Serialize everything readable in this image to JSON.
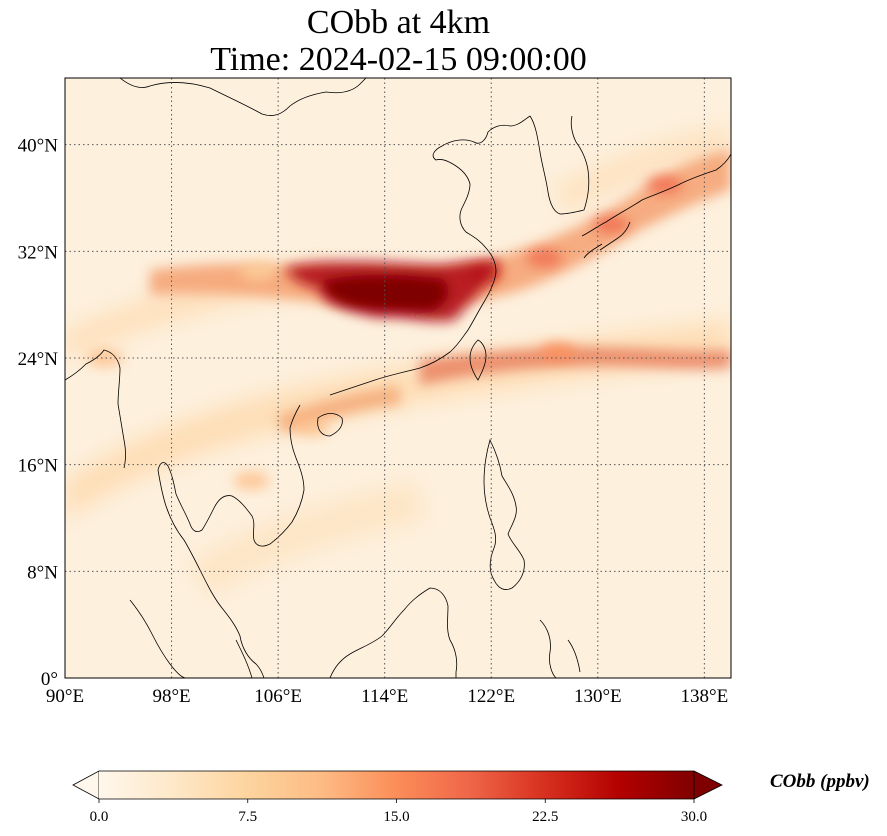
{
  "title": {
    "line1": "CObb at 4km",
    "line2": "Time: 2024-02-15 09:00:00"
  },
  "map": {
    "projection": "PlateCarree",
    "lon_range": [
      90,
      140
    ],
    "lat_range": [
      0,
      45
    ],
    "gridlines": "dotted",
    "x_ticks": [
      {
        "value": 90,
        "label": "90°E"
      },
      {
        "value": 98,
        "label": "98°E"
      },
      {
        "value": 106,
        "label": "106°E"
      },
      {
        "value": 114,
        "label": "114°E"
      },
      {
        "value": 122,
        "label": "122°E"
      },
      {
        "value": 130,
        "label": "130°E"
      },
      {
        "value": 138,
        "label": "138°E"
      }
    ],
    "y_ticks": [
      {
        "value": 0,
        "label": "0°"
      },
      {
        "value": 8,
        "label": "8°N"
      },
      {
        "value": 16,
        "label": "16°N"
      },
      {
        "value": 24,
        "label": "24°N"
      },
      {
        "value": 32,
        "label": "32°N"
      },
      {
        "value": 40,
        "label": "40°N"
      }
    ],
    "plumes": [
      {
        "lon": 115.5,
        "lat": 29.3,
        "value": 30
      },
      {
        "lon": 121.5,
        "lat": 30.3,
        "value": 24
      },
      {
        "lon": 126,
        "lat": 31.5,
        "value": 18
      },
      {
        "lon": 131,
        "lat": 34.0,
        "value": 19
      },
      {
        "lon": 135,
        "lat": 37.0,
        "value": 17
      },
      {
        "lon": 127,
        "lat": 24.5,
        "value": 15
      },
      {
        "lon": 108.5,
        "lat": 18.8,
        "value": 13
      },
      {
        "lon": 104,
        "lat": 14.8,
        "value": 10
      },
      {
        "lon": 93,
        "lat": 24.0,
        "value": 10
      },
      {
        "lon": 104.5,
        "lat": 30.5,
        "value": 8
      }
    ]
  },
  "colorbar": {
    "label": "CObb (ppbv)",
    "colormap": "OrRd",
    "vmin": 0,
    "vmax": 30,
    "extend": "both",
    "ticks": [
      {
        "value": 0,
        "label": "0.0"
      },
      {
        "value": 7.5,
        "label": "7.5"
      },
      {
        "value": 15,
        "label": "15.0"
      },
      {
        "value": 22.5,
        "label": "22.5"
      },
      {
        "value": 30,
        "label": "30.0"
      }
    ],
    "colors": [
      "#fff7ec",
      "#fee8c8",
      "#fdd49e",
      "#fdbb84",
      "#fc8d59",
      "#ef6548",
      "#d7301f",
      "#b30000",
      "#7f0000"
    ]
  }
}
